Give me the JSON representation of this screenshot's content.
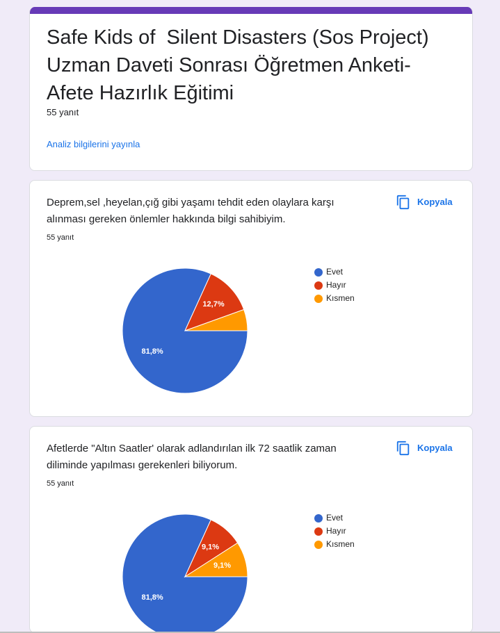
{
  "header": {
    "title": "Safe Kids of  Silent Disasters (Sos Project) Uzman Daveti Sonrası Öğretmen Anketi-Afete Hazırlık Eğitimi",
    "responses": "55 yanıt",
    "publish_link": "Analiz bilgilerini yayınla"
  },
  "questions": [
    {
      "text": "Deprem,sel ,heyelan,çığ gibi yaşamı tehdit eden olaylara karşı alınması gereken önlemler hakkında bilgi sahibiyim.",
      "responses": "55 yanıt",
      "copy_label": "Kopyala"
    },
    {
      "text": "Afetlerde \"Altın Saatler' olarak adlandırılan ilk 72 saatlik zaman diliminde yapılması gerekenleri biliyorum.",
      "responses": "55 yanıt",
      "copy_label": "Kopyala"
    }
  ],
  "chart_data": [
    {
      "type": "pie",
      "categories": [
        "Evet",
        "Hayır",
        "Kısmen"
      ],
      "values": [
        81.8,
        12.7,
        5.5
      ],
      "value_labels": [
        "81,8%",
        "12,7%",
        null
      ],
      "colors": [
        "#3366cc",
        "#dc3912",
        "#ff9900"
      ]
    },
    {
      "type": "pie",
      "categories": [
        "Evet",
        "Hayır",
        "Kısmen"
      ],
      "values": [
        81.8,
        9.1,
        9.1
      ],
      "value_labels": [
        "81,8%",
        "9,1%",
        "9,1%"
      ],
      "colors": [
        "#3366cc",
        "#dc3912",
        "#ff9900"
      ]
    }
  ]
}
